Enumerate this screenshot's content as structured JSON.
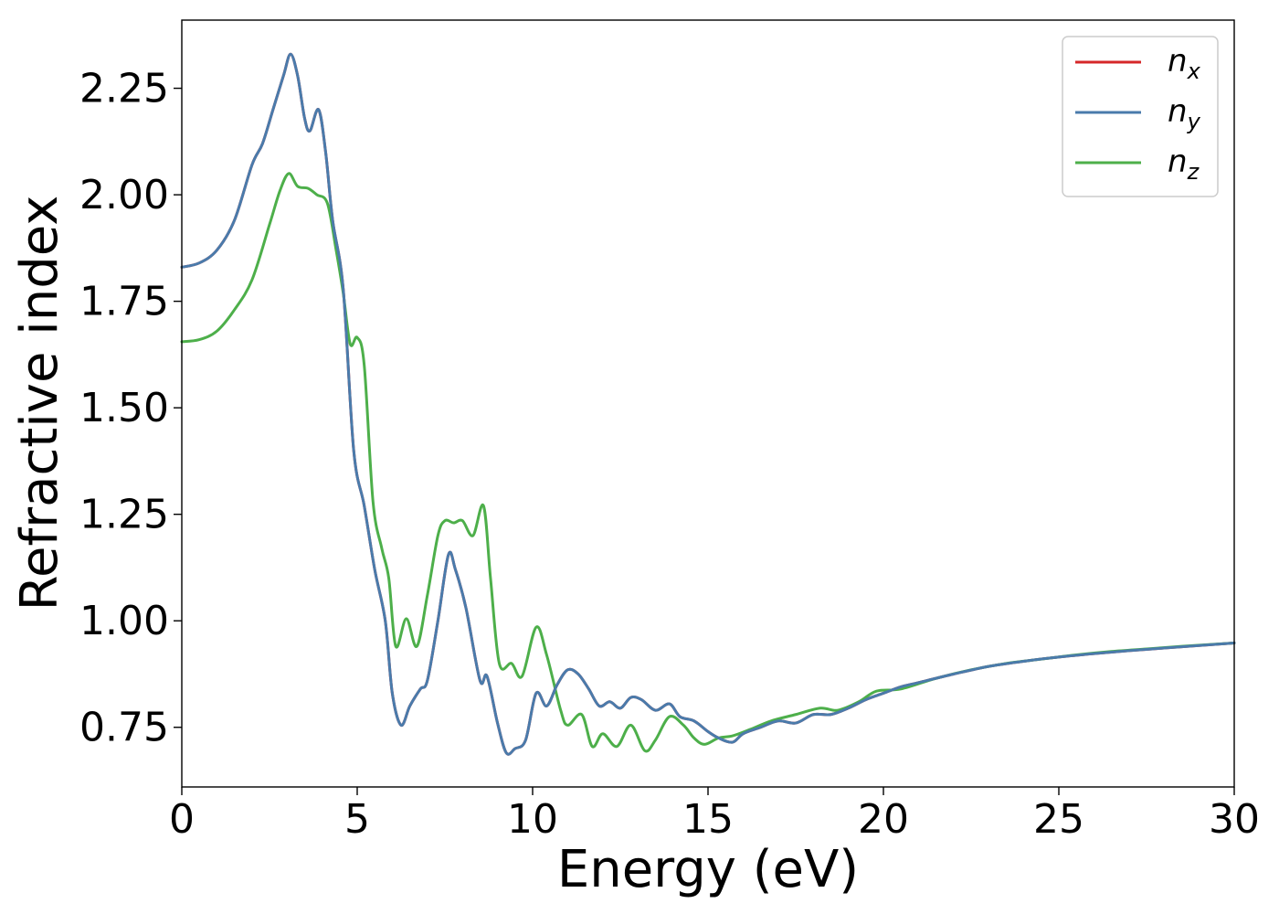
{
  "chart_data": {
    "type": "line",
    "xlabel": "Energy (eV)",
    "ylabel": "Refractive index",
    "xlim": [
      0,
      30
    ],
    "ylim": [
      0.61,
      2.41
    ],
    "xticks": [
      0,
      5,
      10,
      15,
      20,
      25,
      30
    ],
    "xtick_labels": [
      "0",
      "5",
      "10",
      "15",
      "20",
      "25",
      "30"
    ],
    "yticks": [
      0.75,
      1.0,
      1.25,
      1.5,
      1.75,
      2.0,
      2.25
    ],
    "ytick_labels": [
      "0.75",
      "1.00",
      "1.25",
      "1.50",
      "1.75",
      "2.00",
      "2.25"
    ],
    "grid": false,
    "legend_position": "top-right",
    "series": [
      {
        "name": "n_x",
        "label_base": "n",
        "label_sub": "x",
        "color": "#d62728",
        "points": [
          [
            0,
            1.83
          ],
          [
            0.5,
            1.84
          ],
          [
            1,
            1.87
          ],
          [
            1.5,
            1.94
          ],
          [
            2,
            2.07
          ],
          [
            2.3,
            2.12
          ],
          [
            2.6,
            2.2
          ],
          [
            2.9,
            2.28
          ],
          [
            3.1,
            2.33
          ],
          [
            3.3,
            2.28
          ],
          [
            3.5,
            2.18
          ],
          [
            3.65,
            2.15
          ],
          [
            3.9,
            2.2
          ],
          [
            4.1,
            2.1
          ],
          [
            4.3,
            1.94
          ],
          [
            4.6,
            1.78
          ],
          [
            4.9,
            1.4
          ],
          [
            5.2,
            1.27
          ],
          [
            5.5,
            1.12
          ],
          [
            5.8,
            1.0
          ],
          [
            6,
            0.83
          ],
          [
            6.25,
            0.755
          ],
          [
            6.5,
            0.8
          ],
          [
            6.8,
            0.84
          ],
          [
            7,
            0.86
          ],
          [
            7.3,
            1.0
          ],
          [
            7.6,
            1.155
          ],
          [
            7.8,
            1.12
          ],
          [
            8.1,
            1.03
          ],
          [
            8.5,
            0.86
          ],
          [
            8.7,
            0.87
          ],
          [
            9,
            0.76
          ],
          [
            9.25,
            0.69
          ],
          [
            9.5,
            0.7
          ],
          [
            9.8,
            0.72
          ],
          [
            10.1,
            0.83
          ],
          [
            10.4,
            0.8
          ],
          [
            10.7,
            0.85
          ],
          [
            11,
            0.885
          ],
          [
            11.3,
            0.875
          ],
          [
            11.6,
            0.84
          ],
          [
            11.9,
            0.8
          ],
          [
            12.2,
            0.81
          ],
          [
            12.5,
            0.795
          ],
          [
            12.8,
            0.82
          ],
          [
            13.1,
            0.815
          ],
          [
            13.5,
            0.79
          ],
          [
            13.9,
            0.805
          ],
          [
            14.2,
            0.775
          ],
          [
            14.6,
            0.765
          ],
          [
            15,
            0.74
          ],
          [
            15.3,
            0.725
          ],
          [
            15.7,
            0.715
          ],
          [
            16,
            0.735
          ],
          [
            16.5,
            0.75
          ],
          [
            17,
            0.765
          ],
          [
            17.5,
            0.76
          ],
          [
            18,
            0.78
          ],
          [
            18.5,
            0.78
          ],
          [
            19,
            0.795
          ],
          [
            19.5,
            0.815
          ],
          [
            20,
            0.83
          ],
          [
            20.5,
            0.845
          ],
          [
            21,
            0.855
          ],
          [
            22,
            0.875
          ],
          [
            23,
            0.893
          ],
          [
            24,
            0.905
          ],
          [
            25,
            0.915
          ],
          [
            26,
            0.923
          ],
          [
            27,
            0.93
          ],
          [
            28,
            0.936
          ],
          [
            29,
            0.942
          ],
          [
            30,
            0.948
          ]
        ]
      },
      {
        "name": "n_y",
        "label_base": "n",
        "label_sub": "y",
        "color": "#4a7bab",
        "points": [
          [
            0,
            1.83
          ],
          [
            0.5,
            1.84
          ],
          [
            1,
            1.87
          ],
          [
            1.5,
            1.94
          ],
          [
            2,
            2.07
          ],
          [
            2.3,
            2.12
          ],
          [
            2.6,
            2.2
          ],
          [
            2.9,
            2.28
          ],
          [
            3.1,
            2.33
          ],
          [
            3.3,
            2.28
          ],
          [
            3.5,
            2.18
          ],
          [
            3.65,
            2.15
          ],
          [
            3.9,
            2.2
          ],
          [
            4.1,
            2.1
          ],
          [
            4.3,
            1.94
          ],
          [
            4.6,
            1.78
          ],
          [
            4.9,
            1.4
          ],
          [
            5.2,
            1.27
          ],
          [
            5.5,
            1.12
          ],
          [
            5.8,
            1.0
          ],
          [
            6,
            0.83
          ],
          [
            6.25,
            0.755
          ],
          [
            6.5,
            0.8
          ],
          [
            6.8,
            0.84
          ],
          [
            7,
            0.86
          ],
          [
            7.3,
            1.0
          ],
          [
            7.6,
            1.155
          ],
          [
            7.8,
            1.12
          ],
          [
            8.1,
            1.03
          ],
          [
            8.5,
            0.86
          ],
          [
            8.7,
            0.87
          ],
          [
            9,
            0.76
          ],
          [
            9.25,
            0.69
          ],
          [
            9.5,
            0.7
          ],
          [
            9.8,
            0.72
          ],
          [
            10.1,
            0.83
          ],
          [
            10.4,
            0.8
          ],
          [
            10.7,
            0.85
          ],
          [
            11,
            0.885
          ],
          [
            11.3,
            0.875
          ],
          [
            11.6,
            0.84
          ],
          [
            11.9,
            0.8
          ],
          [
            12.2,
            0.81
          ],
          [
            12.5,
            0.795
          ],
          [
            12.8,
            0.82
          ],
          [
            13.1,
            0.815
          ],
          [
            13.5,
            0.79
          ],
          [
            13.9,
            0.805
          ],
          [
            14.2,
            0.775
          ],
          [
            14.6,
            0.765
          ],
          [
            15,
            0.74
          ],
          [
            15.3,
            0.725
          ],
          [
            15.7,
            0.715
          ],
          [
            16,
            0.735
          ],
          [
            16.5,
            0.75
          ],
          [
            17,
            0.765
          ],
          [
            17.5,
            0.76
          ],
          [
            18,
            0.78
          ],
          [
            18.5,
            0.78
          ],
          [
            19,
            0.795
          ],
          [
            19.5,
            0.815
          ],
          [
            20,
            0.83
          ],
          [
            20.5,
            0.845
          ],
          [
            21,
            0.855
          ],
          [
            22,
            0.875
          ],
          [
            23,
            0.893
          ],
          [
            24,
            0.905
          ],
          [
            25,
            0.915
          ],
          [
            26,
            0.923
          ],
          [
            27,
            0.93
          ],
          [
            28,
            0.936
          ],
          [
            29,
            0.942
          ],
          [
            30,
            0.948
          ]
        ]
      },
      {
        "name": "n_z",
        "label_base": "n",
        "label_sub": "z",
        "color": "#4daf4a",
        "points": [
          [
            0,
            1.655
          ],
          [
            0.5,
            1.66
          ],
          [
            1,
            1.68
          ],
          [
            1.5,
            1.73
          ],
          [
            2,
            1.8
          ],
          [
            2.5,
            1.93
          ],
          [
            2.8,
            2.01
          ],
          [
            3.05,
            2.05
          ],
          [
            3.3,
            2.02
          ],
          [
            3.6,
            2.015
          ],
          [
            3.85,
            2.0
          ],
          [
            4.15,
            1.98
          ],
          [
            4.4,
            1.87
          ],
          [
            4.6,
            1.77
          ],
          [
            4.8,
            1.65
          ],
          [
            5.0,
            1.665
          ],
          [
            5.2,
            1.6
          ],
          [
            5.45,
            1.28
          ],
          [
            5.7,
            1.17
          ],
          [
            5.9,
            1.1
          ],
          [
            6.1,
            0.94
          ],
          [
            6.4,
            1.005
          ],
          [
            6.7,
            0.94
          ],
          [
            7,
            1.06
          ],
          [
            7.3,
            1.2
          ],
          [
            7.5,
            1.235
          ],
          [
            7.75,
            1.23
          ],
          [
            8.0,
            1.235
          ],
          [
            8.3,
            1.2
          ],
          [
            8.6,
            1.27
          ],
          [
            8.8,
            1.1
          ],
          [
            9.05,
            0.9
          ],
          [
            9.4,
            0.9
          ],
          [
            9.7,
            0.87
          ],
          [
            10.1,
            0.985
          ],
          [
            10.4,
            0.92
          ],
          [
            10.8,
            0.79
          ],
          [
            11.0,
            0.755
          ],
          [
            11.4,
            0.78
          ],
          [
            11.7,
            0.705
          ],
          [
            12.0,
            0.735
          ],
          [
            12.4,
            0.705
          ],
          [
            12.8,
            0.755
          ],
          [
            13.2,
            0.695
          ],
          [
            13.5,
            0.72
          ],
          [
            13.9,
            0.775
          ],
          [
            14.3,
            0.755
          ],
          [
            14.6,
            0.725
          ],
          [
            14.9,
            0.71
          ],
          [
            15.3,
            0.725
          ],
          [
            15.7,
            0.73
          ],
          [
            16.2,
            0.745
          ],
          [
            16.8,
            0.765
          ],
          [
            17.5,
            0.78
          ],
          [
            18.2,
            0.795
          ],
          [
            18.7,
            0.79
          ],
          [
            19.3,
            0.81
          ],
          [
            19.8,
            0.835
          ],
          [
            20.5,
            0.84
          ],
          [
            21.5,
            0.865
          ],
          [
            22.5,
            0.885
          ],
          [
            23.5,
            0.9
          ],
          [
            24.5,
            0.91
          ],
          [
            25.5,
            0.92
          ],
          [
            26.5,
            0.928
          ],
          [
            27.5,
            0.934
          ],
          [
            28.5,
            0.94
          ],
          [
            30,
            0.948
          ]
        ]
      }
    ]
  }
}
